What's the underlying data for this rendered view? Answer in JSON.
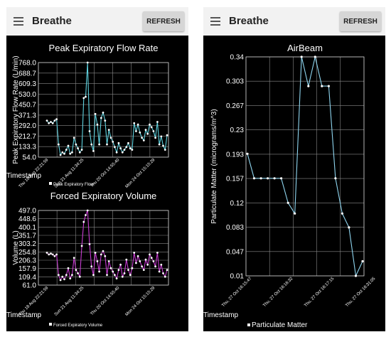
{
  "left_screen": {
    "app_title": "Breathe",
    "refresh_label": "REFRESH",
    "icons": {
      "menu": "hamburger-menu-icon"
    }
  },
  "right_screen": {
    "app_title": "Breathe",
    "refresh_label": "REFRESH",
    "icons": {
      "menu": "hamburger-menu-icon"
    }
  },
  "chart_data": [
    {
      "type": "line",
      "title": "Peak Expiratory Flow Rate",
      "ylabel": "Peak Expiratory Flow Rate (L/min)",
      "xlabel": "Timestamp",
      "ylim": [
        54.0,
        768.0
      ],
      "yticks": [
        "768.0",
        "688.7",
        "609.3",
        "530.0",
        "450.7",
        "371.3",
        "292.0",
        "212.7",
        "133.3",
        "54.0"
      ],
      "xticks": [
        "Thu 18 Aug 22:21:59",
        "Sun 21 Aug 11:34:25",
        "Thu 20 Oct 14:55:40",
        "Mon 24 Oct 15:15:29"
      ],
      "legend": "Peak Expiratory Flow",
      "legend_position": "bottom-left",
      "color": "#5fd3e0",
      "grid": true,
      "series": [
        {
          "values": [
            330,
            310,
            320,
            310,
            330,
            340,
            150,
            70,
            90,
            80,
            110,
            140,
            80,
            90,
            200,
            150,
            120,
            90,
            110,
            500,
            510,
            768,
            250,
            150,
            100,
            380,
            300,
            150,
            350,
            390,
            330,
            150,
            260,
            200,
            170,
            130,
            90,
            160,
            120,
            90,
            110,
            130,
            160,
            120,
            110,
            310,
            250,
            300,
            240,
            200,
            180,
            260,
            230,
            300,
            280,
            250,
            200,
            320,
            150,
            210,
            140,
            110,
            220
          ]
        }
      ]
    },
    {
      "type": "line",
      "title": "Forced Expiratory Volume",
      "ylabel": "Volume (L)",
      "xlabel": "Timestamp",
      "ylim": [
        61.0,
        497.0
      ],
      "yticks": [
        "497.0",
        "448.6",
        "400.1",
        "351.7",
        "303.2",
        "254.8",
        "206.3",
        "157.9",
        "109.4",
        "61.0"
      ],
      "xticks": [
        "Thu 18 Aug 22:21:59",
        "Sun 21 Aug 11:34:25",
        "Thu 20 Oct 14:55:40",
        "Mon 24 Oct 15:15:29"
      ],
      "legend": "Forced Expiratory Volume",
      "legend_position": "bottom-left",
      "color": "#c83cd2",
      "grid": true,
      "series": [
        {
          "values": [
            250,
            240,
            245,
            240,
            230,
            240,
            120,
            90,
            110,
            95,
            120,
            160,
            100,
            120,
            220,
            150,
            130,
            110,
            290,
            430,
            470,
            497,
            300,
            170,
            120,
            250,
            200,
            140,
            240,
            260,
            230,
            120,
            200,
            160,
            140,
            120,
            100,
            150,
            180,
            110,
            130,
            210,
            150,
            120,
            160,
            250,
            190,
            230,
            200,
            170,
            150,
            210,
            180,
            240,
            220,
            200,
            170,
            250,
            140,
            180,
            130,
            110,
            150
          ]
        }
      ]
    },
    {
      "type": "line",
      "title": "AirBeam",
      "ylabel": "Particulate Matter (micrograms/m^3)",
      "xlabel": "Timestamp",
      "ylim": [
        0.01,
        0.34
      ],
      "yticks": [
        "0.34",
        "0.303",
        "0.267",
        "0.23",
        "0.193",
        "0.157",
        "0.12",
        "0.083",
        "0.047",
        "0.01"
      ],
      "xticks": [
        "Thu, 27 Oct 16:15:47",
        "Thu, 27 Oct 16:16:32",
        "Thu, 27 Oct 16:17:15",
        "Thu, 27 Oct 16:31:05"
      ],
      "legend": "Particulate Matter",
      "legend_position": "bottom-left",
      "color": "#8fd6f0",
      "grid": true,
      "series": [
        {
          "values": [
            0.194,
            0.157,
            0.157,
            0.157,
            0.157,
            0.157,
            0.12,
            0.104,
            0.34,
            0.296,
            0.34,
            0.296,
            0.296,
            0.157,
            0.104,
            0.083,
            0.0,
            0.032
          ]
        }
      ]
    }
  ]
}
